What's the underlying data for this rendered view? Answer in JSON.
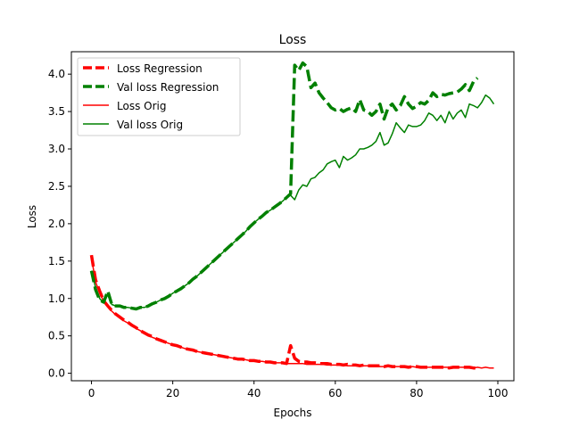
{
  "chart_data": {
    "type": "line",
    "title": "Loss",
    "xlabel": "Epochs",
    "ylabel": "Loss",
    "xlim": [
      -4.95,
      103.95
    ],
    "ylim": [
      -0.1,
      4.3
    ],
    "xticks": [
      0,
      20,
      40,
      60,
      80,
      100
    ],
    "yticks": [
      0.0,
      0.5,
      1.0,
      1.5,
      2.0,
      2.5,
      3.0,
      3.5,
      4.0
    ],
    "xtick_labels": [
      "0",
      "20",
      "40",
      "60",
      "80",
      "100"
    ],
    "ytick_labels": [
      "0.0",
      "0.5",
      "1.0",
      "1.5",
      "2.0",
      "2.5",
      "3.0",
      "3.5",
      "4.0"
    ],
    "grid": false,
    "legend_position": "upper-left",
    "series": [
      {
        "name": "Loss Regression",
        "color": "#ff0000",
        "style": "dashed",
        "width": "thick",
        "x": [
          0,
          1,
          2,
          3,
          4,
          5,
          6,
          7,
          8,
          9,
          10,
          11,
          12,
          13,
          14,
          15,
          16,
          17,
          18,
          19,
          20,
          21,
          22,
          23,
          24,
          25,
          26,
          27,
          28,
          29,
          30,
          31,
          32,
          33,
          34,
          35,
          36,
          37,
          38,
          39,
          40,
          41,
          42,
          43,
          44,
          45,
          46,
          47,
          48,
          49,
          50,
          51,
          52,
          53,
          54,
          55,
          56,
          57,
          58,
          59,
          60,
          61,
          62,
          63,
          64,
          65,
          66,
          67,
          68,
          69,
          70,
          71,
          72,
          73,
          74,
          75,
          76,
          77,
          78,
          79,
          80,
          81,
          82,
          83,
          84,
          85,
          86,
          87,
          88,
          89,
          90,
          91,
          92,
          93,
          94,
          95
        ],
        "y": [
          1.58,
          1.25,
          1.1,
          0.97,
          0.9,
          0.84,
          0.79,
          0.75,
          0.71,
          0.68,
          0.64,
          0.61,
          0.57,
          0.54,
          0.51,
          0.49,
          0.46,
          0.44,
          0.42,
          0.4,
          0.38,
          0.37,
          0.35,
          0.33,
          0.32,
          0.31,
          0.29,
          0.28,
          0.27,
          0.26,
          0.25,
          0.24,
          0.23,
          0.22,
          0.21,
          0.2,
          0.19,
          0.19,
          0.18,
          0.17,
          0.17,
          0.16,
          0.16,
          0.15,
          0.15,
          0.14,
          0.14,
          0.14,
          0.13,
          0.37,
          0.2,
          0.16,
          0.15,
          0.15,
          0.14,
          0.14,
          0.13,
          0.13,
          0.13,
          0.12,
          0.12,
          0.12,
          0.11,
          0.12,
          0.11,
          0.11,
          0.1,
          0.11,
          0.1,
          0.1,
          0.1,
          0.1,
          0.09,
          0.1,
          0.09,
          0.09,
          0.09,
          0.09,
          0.08,
          0.09,
          0.09,
          0.08,
          0.08,
          0.08,
          0.08,
          0.08,
          0.08,
          0.08,
          0.07,
          0.08,
          0.08,
          0.08,
          0.08,
          0.08,
          0.07,
          0.07
        ]
      },
      {
        "name": "Val loss Regression",
        "color": "#008000",
        "style": "dashed",
        "width": "thick",
        "x": [
          0,
          1,
          2,
          3,
          4,
          5,
          6,
          7,
          8,
          9,
          10,
          11,
          12,
          13,
          14,
          15,
          16,
          17,
          18,
          19,
          20,
          21,
          22,
          23,
          24,
          25,
          26,
          27,
          28,
          29,
          30,
          31,
          32,
          33,
          34,
          35,
          36,
          37,
          38,
          39,
          40,
          41,
          42,
          43,
          44,
          45,
          46,
          47,
          48,
          49,
          50,
          51,
          52,
          53,
          54,
          55,
          56,
          57,
          58,
          59,
          60,
          61,
          62,
          63,
          64,
          65,
          66,
          67,
          68,
          69,
          70,
          71,
          72,
          73,
          74,
          75,
          76,
          77,
          78,
          79,
          80,
          81,
          82,
          83,
          84,
          85,
          86,
          87,
          88,
          89,
          90,
          91,
          92,
          93,
          94,
          95
        ],
        "y": [
          1.37,
          1.12,
          0.98,
          0.95,
          1.1,
          0.92,
          0.9,
          0.9,
          0.88,
          0.88,
          0.87,
          0.86,
          0.88,
          0.88,
          0.9,
          0.93,
          0.95,
          0.98,
          1.0,
          1.03,
          1.07,
          1.1,
          1.13,
          1.17,
          1.21,
          1.26,
          1.3,
          1.35,
          1.4,
          1.45,
          1.5,
          1.55,
          1.6,
          1.65,
          1.7,
          1.75,
          1.8,
          1.85,
          1.9,
          1.96,
          2.01,
          2.06,
          2.1,
          2.15,
          2.18,
          2.22,
          2.26,
          2.3,
          2.35,
          2.4,
          4.12,
          4.05,
          4.15,
          4.1,
          3.82,
          3.88,
          3.75,
          3.68,
          3.62,
          3.55,
          3.52,
          3.54,
          3.5,
          3.53,
          3.55,
          3.5,
          3.66,
          3.52,
          3.5,
          3.45,
          3.5,
          3.6,
          3.4,
          3.55,
          3.6,
          3.52,
          3.58,
          3.7,
          3.6,
          3.54,
          3.57,
          3.62,
          3.6,
          3.65,
          3.75,
          3.7,
          3.73,
          3.72,
          3.74,
          3.75,
          3.76,
          3.8,
          3.86,
          3.78,
          3.9,
          3.95
        ]
      },
      {
        "name": "Loss Orig",
        "color": "#ff0000",
        "style": "solid",
        "width": "thin",
        "x": [
          0,
          1,
          2,
          3,
          4,
          5,
          6,
          7,
          8,
          9,
          10,
          11,
          12,
          13,
          14,
          15,
          16,
          17,
          18,
          19,
          20,
          21,
          22,
          23,
          24,
          25,
          26,
          27,
          28,
          29,
          30,
          31,
          32,
          33,
          34,
          35,
          36,
          37,
          38,
          39,
          40,
          41,
          42,
          43,
          44,
          45,
          46,
          47,
          48,
          49,
          50,
          51,
          52,
          53,
          54,
          55,
          56,
          57,
          58,
          59,
          60,
          61,
          62,
          63,
          64,
          65,
          66,
          67,
          68,
          69,
          70,
          71,
          72,
          73,
          74,
          75,
          76,
          77,
          78,
          79,
          80,
          81,
          82,
          83,
          84,
          85,
          86,
          87,
          88,
          89,
          90,
          91,
          92,
          93,
          94,
          95,
          96,
          97,
          98,
          99
        ],
        "y": [
          1.55,
          1.22,
          1.08,
          0.96,
          0.89,
          0.83,
          0.78,
          0.74,
          0.7,
          0.67,
          0.63,
          0.6,
          0.57,
          0.54,
          0.51,
          0.48,
          0.46,
          0.44,
          0.42,
          0.4,
          0.38,
          0.36,
          0.35,
          0.33,
          0.32,
          0.3,
          0.29,
          0.28,
          0.27,
          0.26,
          0.25,
          0.24,
          0.23,
          0.22,
          0.21,
          0.2,
          0.19,
          0.19,
          0.18,
          0.17,
          0.17,
          0.16,
          0.16,
          0.15,
          0.15,
          0.14,
          0.14,
          0.14,
          0.13,
          0.13,
          0.13,
          0.13,
          0.13,
          0.12,
          0.12,
          0.12,
          0.12,
          0.12,
          0.11,
          0.11,
          0.11,
          0.11,
          0.11,
          0.1,
          0.1,
          0.1,
          0.1,
          0.1,
          0.1,
          0.1,
          0.1,
          0.09,
          0.09,
          0.09,
          0.09,
          0.09,
          0.09,
          0.09,
          0.09,
          0.09,
          0.08,
          0.08,
          0.08,
          0.08,
          0.08,
          0.08,
          0.08,
          0.08,
          0.08,
          0.08,
          0.08,
          0.08,
          0.08,
          0.08,
          0.07,
          0.08,
          0.07,
          0.08,
          0.07,
          0.07
        ]
      },
      {
        "name": "Val loss Orig",
        "color": "#008000",
        "style": "solid",
        "width": "thin",
        "x": [
          0,
          1,
          2,
          3,
          4,
          5,
          6,
          7,
          8,
          9,
          10,
          11,
          12,
          13,
          14,
          15,
          16,
          17,
          18,
          19,
          20,
          21,
          22,
          23,
          24,
          25,
          26,
          27,
          28,
          29,
          30,
          31,
          32,
          33,
          34,
          35,
          36,
          37,
          38,
          39,
          40,
          41,
          42,
          43,
          44,
          45,
          46,
          47,
          48,
          49,
          50,
          51,
          52,
          53,
          54,
          55,
          56,
          57,
          58,
          59,
          60,
          61,
          62,
          63,
          64,
          65,
          66,
          67,
          68,
          69,
          70,
          71,
          72,
          73,
          74,
          75,
          76,
          77,
          78,
          79,
          80,
          81,
          82,
          83,
          84,
          85,
          86,
          87,
          88,
          89,
          90,
          91,
          92,
          93,
          94,
          95,
          96,
          97,
          98,
          99
        ],
        "y": [
          1.37,
          1.15,
          1.0,
          0.94,
          1.05,
          0.92,
          0.9,
          0.9,
          0.88,
          0.88,
          0.87,
          0.86,
          0.88,
          0.88,
          0.9,
          0.93,
          0.95,
          0.98,
          1.0,
          1.03,
          1.07,
          1.1,
          1.13,
          1.17,
          1.21,
          1.26,
          1.3,
          1.35,
          1.4,
          1.45,
          1.5,
          1.55,
          1.6,
          1.65,
          1.7,
          1.75,
          1.8,
          1.85,
          1.9,
          1.96,
          2.01,
          2.06,
          2.1,
          2.15,
          2.18,
          2.22,
          2.26,
          2.3,
          2.35,
          2.38,
          2.32,
          2.45,
          2.52,
          2.5,
          2.6,
          2.62,
          2.68,
          2.72,
          2.8,
          2.83,
          2.85,
          2.75,
          2.9,
          2.85,
          2.88,
          2.92,
          3.0,
          3.0,
          3.02,
          3.05,
          3.1,
          3.22,
          3.05,
          3.08,
          3.2,
          3.35,
          3.28,
          3.22,
          3.32,
          3.3,
          3.3,
          3.32,
          3.38,
          3.48,
          3.45,
          3.38,
          3.45,
          3.35,
          3.5,
          3.4,
          3.48,
          3.52,
          3.42,
          3.6,
          3.58,
          3.55,
          3.62,
          3.72,
          3.68,
          3.6
        ]
      }
    ]
  }
}
